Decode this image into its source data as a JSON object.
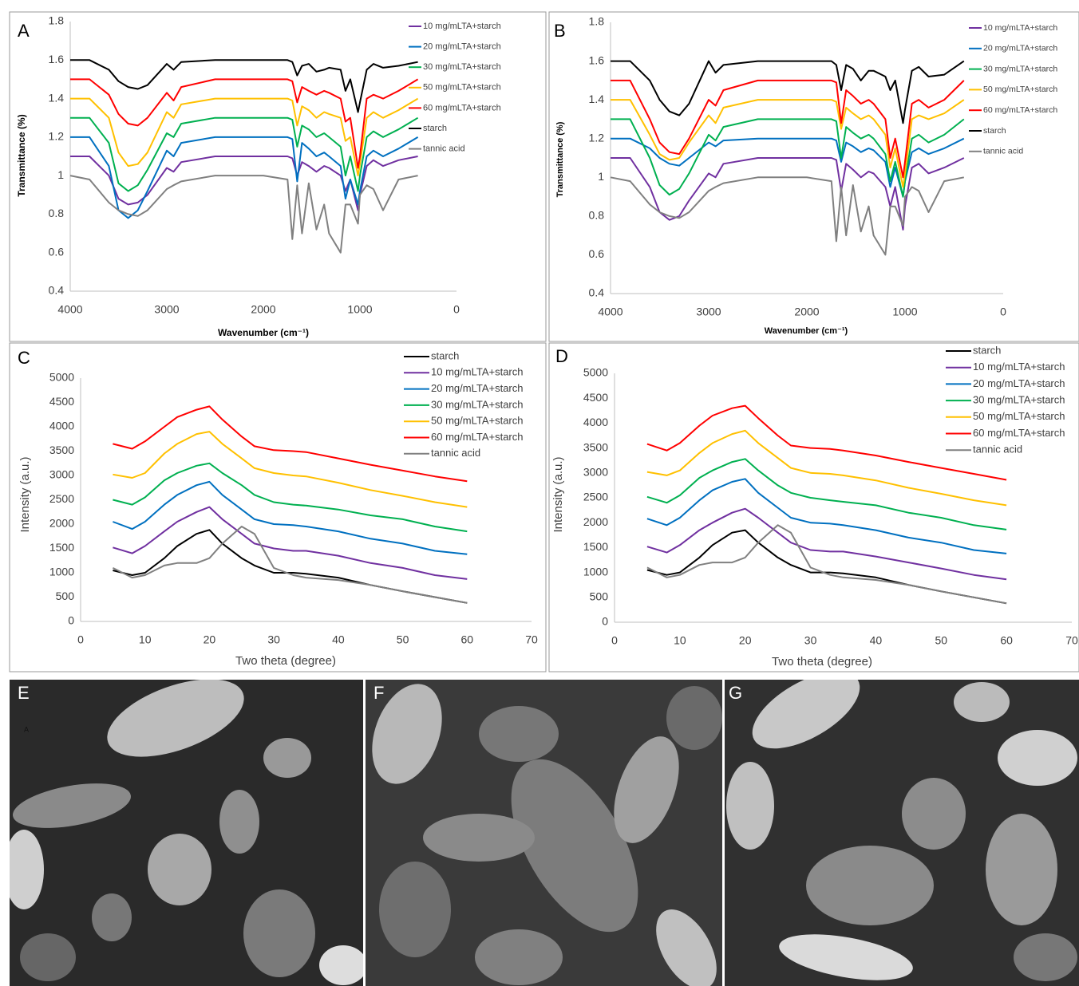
{
  "chart_data": [
    {
      "type": "line",
      "label": "A",
      "y_label": "Transmittance (%)",
      "x_label": "Wavenumber (cm⁻¹)",
      "xlim": [
        4000,
        0
      ],
      "xticks": [
        4000,
        3000,
        2000,
        1000,
        0
      ],
      "ylim": [
        0.4,
        1.8
      ],
      "yticks": [
        0.4,
        0.6,
        0.8,
        1,
        1.2,
        1.4,
        1.6,
        1.8
      ],
      "x": [
        4000,
        3800,
        3600,
        3500,
        3400,
        3300,
        3200,
        3000,
        2930,
        2850,
        2500,
        2000,
        1750,
        1700,
        1650,
        1600,
        1530,
        1450,
        1370,
        1320,
        1200,
        1150,
        1100,
        1020,
        1000,
        930,
        860,
        760,
        600,
        400
      ],
      "series": [
        {
          "name": "10 mg/mLTA+starch",
          "color": "#7030a0",
          "values": [
            1.1,
            1.1,
            1.0,
            0.88,
            0.85,
            0.86,
            0.9,
            1.04,
            1.02,
            1.07,
            1.1,
            1.1,
            1.1,
            1.09,
            1.0,
            1.07,
            1.05,
            1.02,
            1.05,
            1.04,
            1.0,
            0.92,
            0.98,
            0.82,
            0.9,
            1.05,
            1.08,
            1.05,
            1.08,
            1.1
          ]
        },
        {
          "name": "20 mg/mLTA+starch",
          "color": "#0070c0",
          "values": [
            1.2,
            1.2,
            1.05,
            0.82,
            0.78,
            0.82,
            0.92,
            1.13,
            1.1,
            1.17,
            1.2,
            1.2,
            1.2,
            1.19,
            0.97,
            1.17,
            1.14,
            1.1,
            1.12,
            1.1,
            1.05,
            0.88,
            0.98,
            0.85,
            0.92,
            1.1,
            1.13,
            1.1,
            1.14,
            1.2
          ]
        },
        {
          "name": "30 mg/mLTA+starch",
          "color": "#00b050",
          "values": [
            1.3,
            1.3,
            1.17,
            0.96,
            0.92,
            0.95,
            1.03,
            1.22,
            1.2,
            1.27,
            1.3,
            1.3,
            1.3,
            1.29,
            1.15,
            1.26,
            1.24,
            1.2,
            1.22,
            1.2,
            1.15,
            1.0,
            1.1,
            0.92,
            1.0,
            1.2,
            1.23,
            1.2,
            1.24,
            1.3
          ]
        },
        {
          "name": "50 mg/mLTA+starch",
          "color": "#ffc000",
          "values": [
            1.4,
            1.4,
            1.3,
            1.12,
            1.05,
            1.06,
            1.12,
            1.33,
            1.3,
            1.37,
            1.4,
            1.4,
            1.4,
            1.39,
            1.26,
            1.36,
            1.34,
            1.3,
            1.33,
            1.32,
            1.3,
            1.18,
            1.2,
            1.0,
            1.06,
            1.3,
            1.33,
            1.3,
            1.34,
            1.4
          ]
        },
        {
          "name": "60 mg/mLTA+starch",
          "color": "#ff0000",
          "values": [
            1.5,
            1.5,
            1.42,
            1.32,
            1.27,
            1.26,
            1.3,
            1.43,
            1.39,
            1.46,
            1.5,
            1.5,
            1.5,
            1.49,
            1.38,
            1.46,
            1.44,
            1.42,
            1.44,
            1.43,
            1.4,
            1.28,
            1.3,
            1.04,
            1.1,
            1.4,
            1.42,
            1.4,
            1.44,
            1.5
          ]
        },
        {
          "name": "starch",
          "color": "#000000",
          "values": [
            1.6,
            1.6,
            1.55,
            1.49,
            1.46,
            1.45,
            1.47,
            1.58,
            1.55,
            1.59,
            1.6,
            1.6,
            1.6,
            1.59,
            1.52,
            1.57,
            1.58,
            1.54,
            1.55,
            1.56,
            1.55,
            1.44,
            1.5,
            1.33,
            1.38,
            1.55,
            1.58,
            1.56,
            1.57,
            1.59
          ]
        },
        {
          "name": "tannic acid",
          "color": "#808080",
          "values": [
            1.0,
            0.98,
            0.86,
            0.82,
            0.8,
            0.79,
            0.82,
            0.93,
            0.95,
            0.97,
            1.0,
            1.0,
            0.98,
            0.67,
            0.95,
            0.7,
            0.96,
            0.72,
            0.85,
            0.7,
            0.6,
            0.85,
            0.85,
            0.75,
            0.9,
            0.95,
            0.93,
            0.82,
            0.98,
            1.0
          ]
        }
      ]
    },
    {
      "type": "line",
      "label": "B",
      "y_label": "Transmittance (%)",
      "x_label": "Wavenumber (cm⁻¹)",
      "xlim": [
        4000,
        0
      ],
      "xticks": [
        4000,
        3000,
        2000,
        1000,
        0
      ],
      "ylim": [
        0.4,
        1.8
      ],
      "yticks": [
        0.4,
        0.6,
        0.8,
        1,
        1.2,
        1.4,
        1.6,
        1.8
      ],
      "x": [
        4000,
        3800,
        3600,
        3500,
        3400,
        3300,
        3200,
        3000,
        2930,
        2850,
        2500,
        2000,
        1750,
        1700,
        1650,
        1600,
        1530,
        1450,
        1370,
        1320,
        1200,
        1150,
        1100,
        1020,
        1000,
        930,
        860,
        760,
        600,
        400
      ],
      "series": [
        {
          "name": "10 mg/mLTA+starch",
          "color": "#7030a0",
          "values": [
            1.1,
            1.1,
            0.95,
            0.82,
            0.78,
            0.8,
            0.88,
            1.02,
            1.0,
            1.07,
            1.1,
            1.1,
            1.1,
            1.09,
            0.93,
            1.07,
            1.04,
            1.0,
            1.03,
            1.02,
            0.95,
            0.85,
            0.95,
            0.73,
            0.85,
            1.05,
            1.07,
            1.02,
            1.05,
            1.1
          ]
        },
        {
          "name": "20 mg/mLTA+starch",
          "color": "#0070c0",
          "values": [
            1.2,
            1.2,
            1.15,
            1.1,
            1.07,
            1.06,
            1.1,
            1.18,
            1.16,
            1.19,
            1.2,
            1.2,
            1.2,
            1.19,
            1.08,
            1.18,
            1.16,
            1.13,
            1.15,
            1.14,
            1.08,
            0.95,
            1.05,
            0.9,
            0.98,
            1.13,
            1.15,
            1.12,
            1.15,
            1.2
          ]
        },
        {
          "name": "30 mg/mLTA+starch",
          "color": "#00b050",
          "values": [
            1.3,
            1.3,
            1.1,
            0.96,
            0.91,
            0.94,
            1.02,
            1.22,
            1.19,
            1.26,
            1.3,
            1.3,
            1.3,
            1.29,
            1.1,
            1.26,
            1.23,
            1.2,
            1.22,
            1.2,
            1.12,
            0.98,
            1.08,
            0.9,
            0.98,
            1.2,
            1.22,
            1.18,
            1.22,
            1.3
          ]
        },
        {
          "name": "50 mg/mLTA+starch",
          "color": "#ffc000",
          "values": [
            1.4,
            1.4,
            1.22,
            1.12,
            1.09,
            1.1,
            1.18,
            1.32,
            1.28,
            1.36,
            1.4,
            1.4,
            1.4,
            1.39,
            1.25,
            1.36,
            1.33,
            1.3,
            1.32,
            1.3,
            1.22,
            1.05,
            1.15,
            0.95,
            1.02,
            1.3,
            1.32,
            1.3,
            1.33,
            1.4
          ]
        },
        {
          "name": "60 mg/mLTA+starch",
          "color": "#ff0000",
          "values": [
            1.5,
            1.5,
            1.3,
            1.18,
            1.13,
            1.12,
            1.2,
            1.4,
            1.37,
            1.45,
            1.5,
            1.5,
            1.5,
            1.49,
            1.28,
            1.45,
            1.42,
            1.38,
            1.4,
            1.38,
            1.3,
            1.1,
            1.2,
            1.0,
            1.08,
            1.38,
            1.4,
            1.36,
            1.4,
            1.5
          ]
        },
        {
          "name": "starch",
          "color": "#000000",
          "values": [
            1.6,
            1.6,
            1.5,
            1.4,
            1.34,
            1.32,
            1.38,
            1.6,
            1.54,
            1.58,
            1.6,
            1.6,
            1.6,
            1.58,
            1.45,
            1.58,
            1.56,
            1.5,
            1.55,
            1.55,
            1.52,
            1.45,
            1.5,
            1.28,
            1.35,
            1.55,
            1.57,
            1.52,
            1.53,
            1.6
          ]
        },
        {
          "name": "tannic acid",
          "color": "#808080",
          "values": [
            1.0,
            0.98,
            0.86,
            0.82,
            0.8,
            0.79,
            0.82,
            0.93,
            0.95,
            0.97,
            1.0,
            1.0,
            0.98,
            0.67,
            0.95,
            0.7,
            0.96,
            0.72,
            0.85,
            0.7,
            0.6,
            0.85,
            0.85,
            0.75,
            0.9,
            0.95,
            0.93,
            0.82,
            0.98,
            1.0
          ]
        }
      ]
    },
    {
      "type": "line",
      "label": "C",
      "y_label": "Intensity (a.u.)",
      "x_label": "Two theta (degree)",
      "xlim": [
        0,
        70
      ],
      "xticks": [
        0,
        10,
        20,
        30,
        40,
        50,
        60,
        70
      ],
      "ylim": [
        0,
        5000
      ],
      "yticks": [
        0,
        500,
        1000,
        1500,
        2000,
        2500,
        3000,
        3500,
        4000,
        4500,
        5000
      ],
      "x": [
        5,
        8,
        10,
        13,
        15,
        18,
        20,
        22,
        25,
        27,
        30,
        33,
        35,
        40,
        45,
        50,
        55,
        60
      ],
      "series": [
        {
          "name": "starch",
          "color": "#000000",
          "values": [
            1050,
            950,
            1000,
            1300,
            1550,
            1800,
            1880,
            1600,
            1300,
            1150,
            1000,
            1000,
            980,
            900,
            750,
            620,
            500,
            380
          ]
        },
        {
          "name": "10 mg/mLTA+starch",
          "color": "#7030a0",
          "values": [
            1520,
            1400,
            1550,
            1850,
            2050,
            2250,
            2350,
            2100,
            1800,
            1600,
            1500,
            1450,
            1450,
            1350,
            1200,
            1100,
            950,
            870
          ]
        },
        {
          "name": "20 mg/mLTA+starch",
          "color": "#0070c0",
          "values": [
            2050,
            1900,
            2050,
            2400,
            2600,
            2800,
            2870,
            2600,
            2300,
            2100,
            2000,
            1980,
            1950,
            1850,
            1700,
            1600,
            1450,
            1380
          ]
        },
        {
          "name": "30 mg/mLTA+starch",
          "color": "#00b050",
          "values": [
            2500,
            2400,
            2550,
            2900,
            3050,
            3200,
            3250,
            3050,
            2800,
            2600,
            2450,
            2400,
            2380,
            2300,
            2180,
            2100,
            1950,
            1850
          ]
        },
        {
          "name": "50 mg/mLTA+starch",
          "color": "#ffc000",
          "values": [
            3020,
            2950,
            3050,
            3450,
            3650,
            3850,
            3900,
            3650,
            3350,
            3150,
            3050,
            3000,
            2980,
            2850,
            2700,
            2580,
            2450,
            2350
          ]
        },
        {
          "name": "60 mg/mLTA+starch",
          "color": "#ff0000",
          "values": [
            3650,
            3550,
            3700,
            4000,
            4200,
            4350,
            4420,
            4150,
            3800,
            3600,
            3520,
            3500,
            3480,
            3350,
            3220,
            3100,
            2980,
            2880
          ]
        },
        {
          "name": "tannic acid",
          "color": "#808080",
          "values": [
            1100,
            900,
            950,
            1150,
            1200,
            1200,
            1300,
            1600,
            1950,
            1800,
            1100,
            950,
            900,
            850,
            750,
            620,
            500,
            380
          ]
        }
      ]
    },
    {
      "type": "line",
      "label": "D",
      "y_label": "Intensity (a.u.)",
      "x_label": "Two theta (degree)",
      "xlim": [
        0,
        70
      ],
      "xticks": [
        0,
        10,
        20,
        30,
        40,
        50,
        60,
        70
      ],
      "ylim": [
        0,
        5000
      ],
      "yticks": [
        0,
        500,
        1000,
        1500,
        2000,
        2500,
        3000,
        3500,
        4000,
        4500,
        5000
      ],
      "x": [
        5,
        8,
        10,
        13,
        15,
        18,
        20,
        22,
        25,
        27,
        30,
        33,
        35,
        40,
        45,
        50,
        55,
        60
      ],
      "series": [
        {
          "name": "starch",
          "color": "#000000",
          "values": [
            1050,
            950,
            1000,
            1300,
            1550,
            1800,
            1850,
            1600,
            1300,
            1150,
            1000,
            1000,
            980,
            900,
            750,
            620,
            500,
            380
          ]
        },
        {
          "name": "10 mg/mLTA+starch",
          "color": "#7030a0",
          "values": [
            1520,
            1400,
            1550,
            1850,
            2000,
            2200,
            2280,
            2100,
            1800,
            1600,
            1450,
            1420,
            1420,
            1320,
            1200,
            1080,
            950,
            860
          ]
        },
        {
          "name": "20 mg/mLTA+starch",
          "color": "#0070c0",
          "values": [
            2080,
            1950,
            2100,
            2450,
            2650,
            2820,
            2880,
            2600,
            2300,
            2100,
            2000,
            1980,
            1950,
            1850,
            1700,
            1600,
            1450,
            1380
          ]
        },
        {
          "name": "30 mg/mLTA+starch",
          "color": "#00b050",
          "values": [
            2520,
            2400,
            2550,
            2900,
            3050,
            3220,
            3280,
            3050,
            2750,
            2600,
            2500,
            2450,
            2420,
            2350,
            2200,
            2100,
            1950,
            1860
          ]
        },
        {
          "name": "50 mg/mLTA+starch",
          "color": "#ffc000",
          "values": [
            3020,
            2950,
            3050,
            3400,
            3600,
            3780,
            3850,
            3600,
            3300,
            3100,
            3000,
            2980,
            2950,
            2850,
            2700,
            2580,
            2450,
            2350
          ]
        },
        {
          "name": "60 mg/mLTA+starch",
          "color": "#ff0000",
          "values": [
            3580,
            3450,
            3600,
            3950,
            4150,
            4300,
            4350,
            4100,
            3750,
            3550,
            3500,
            3480,
            3450,
            3350,
            3220,
            3100,
            2980,
            2860
          ]
        },
        {
          "name": "tannic acid",
          "color": "#808080",
          "values": [
            1100,
            900,
            950,
            1150,
            1200,
            1200,
            1300,
            1600,
            1950,
            1800,
            1100,
            950,
            900,
            850,
            750,
            620,
            500,
            380
          ]
        }
      ]
    }
  ],
  "images": [
    {
      "label": "E",
      "inset_text": "A"
    },
    {
      "label": "F"
    },
    {
      "label": "G"
    }
  ]
}
